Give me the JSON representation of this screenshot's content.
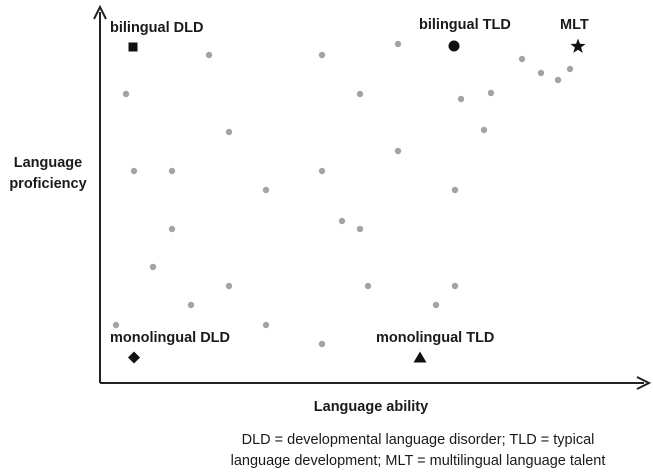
{
  "axes": {
    "x_label": "Language ability",
    "y_label_lines": [
      "Language",
      "proficiency"
    ]
  },
  "categories": [
    {
      "id": "bilingual-dld",
      "label": "bilingual DLD",
      "marker": "square"
    },
    {
      "id": "bilingual-tld",
      "label": "bilingual TLD",
      "marker": "circle"
    },
    {
      "id": "mlt",
      "label": "MLT",
      "marker": "star"
    },
    {
      "id": "monolingual-dld",
      "label": "monolingual DLD",
      "marker": "diamond"
    },
    {
      "id": "monolingual-tld",
      "label": "monolingual TLD",
      "marker": "triangle"
    }
  ],
  "footnote_lines": [
    "DLD = developmental language disorder; TLD = typical",
    "language development; MLT = multilingual language talent"
  ],
  "colors": {
    "axis": "#222222",
    "dot": "#a3a3a3",
    "marker": "#111111"
  }
}
